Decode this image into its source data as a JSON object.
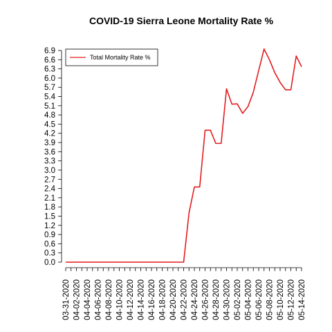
{
  "chart_data": {
    "type": "line",
    "title": "COVID-19 Sierra Leone Mortality Rate %",
    "xlabel": "",
    "ylabel": "",
    "x": [
      "03-31-2020",
      "04-01-2020",
      "04-02-2020",
      "04-03-2020",
      "04-04-2020",
      "04-05-2020",
      "04-06-2020",
      "04-07-2020",
      "04-08-2020",
      "04-09-2020",
      "04-10-2020",
      "04-11-2020",
      "04-12-2020",
      "04-13-2020",
      "04-14-2020",
      "04-15-2020",
      "04-16-2020",
      "04-17-2020",
      "04-18-2020",
      "04-19-2020",
      "04-20-2020",
      "04-21-2020",
      "04-22-2020",
      "04-23-2020",
      "04-24-2020",
      "04-25-2020",
      "04-26-2020",
      "04-27-2020",
      "04-28-2020",
      "04-29-2020",
      "04-30-2020",
      "05-01-2020",
      "05-02-2020",
      "05-03-2020",
      "05-04-2020",
      "05-05-2020",
      "05-06-2020",
      "05-07-2020",
      "05-08-2020",
      "05-09-2020",
      "05-10-2020",
      "05-11-2020",
      "05-12-2020",
      "05-13-2020",
      "05-14-2020"
    ],
    "x_tick_labels": [
      "03-31-2020",
      "04-02-2020",
      "04-04-2020",
      "04-06-2020",
      "04-08-2020",
      "04-10-2020",
      "04-12-2020",
      "04-14-2020",
      "04-16-2020",
      "04-18-2020",
      "04-20-2020",
      "04-22-2020",
      "04-24-2020",
      "04-26-2020",
      "04-28-2020",
      "04-30-2020",
      "05-02-2020",
      "05-04-2020",
      "05-06-2020",
      "05-08-2020",
      "05-10-2020",
      "05-12-2020",
      "05-14-2020"
    ],
    "y_tick_labels": [
      "0.0",
      "0.3",
      "0.6",
      "0.9",
      "1.2",
      "1.5",
      "1.8",
      "2.1",
      "2.4",
      "2.7",
      "3.0",
      "3.3",
      "3.6",
      "3.9",
      "4.2",
      "4.5",
      "4.8",
      "5.1",
      "5.4",
      "5.7",
      "6.0",
      "6.3",
      "6.6",
      "6.9"
    ],
    "ylim": [
      0,
      6.9
    ],
    "grid": false,
    "legend_position": "top-left",
    "series": [
      {
        "name": "Total Mortality Rate %",
        "color": "#e41a1c",
        "values": [
          0,
          0,
          0,
          0,
          0,
          0,
          0,
          0,
          0,
          0,
          0,
          0,
          0,
          0,
          0,
          0,
          0,
          0,
          0,
          0,
          0,
          0,
          0,
          1.6,
          2.45,
          2.45,
          4.3,
          4.3,
          3.87,
          3.87,
          5.65,
          5.15,
          5.16,
          4.85,
          5.07,
          5.54,
          6.25,
          6.95,
          6.6,
          6.18,
          5.86,
          5.62,
          5.62,
          6.72,
          6.37
        ]
      }
    ]
  }
}
